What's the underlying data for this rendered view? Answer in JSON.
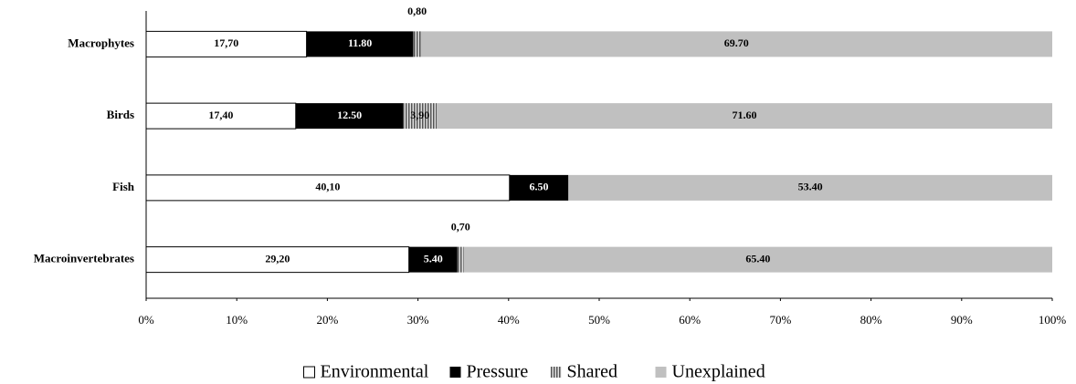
{
  "chart_data": {
    "type": "bar",
    "orientation": "horizontal",
    "stacked": "percent",
    "categories": [
      "Macrophytes",
      "Birds",
      "Fish",
      "Macroinvertebrates"
    ],
    "series": [
      {
        "name": "Environmental",
        "color": "#ffffff",
        "values": [
          17.7,
          17.4,
          40.1,
          29.2
        ],
        "value_labels": [
          "17,70",
          "17,40",
          "40,10",
          "29,20"
        ]
      },
      {
        "name": "Pressure",
        "color": "#000000",
        "values": [
          11.8,
          12.5,
          6.5,
          5.4
        ],
        "value_labels": [
          "11.80",
          "12.50",
          "6.50",
          "5.40"
        ]
      },
      {
        "name": "Shared",
        "color": "#999999",
        "pattern": "vertical-stripes",
        "values": [
          0.8,
          3.9,
          null,
          0.7
        ],
        "value_labels": [
          "0,80",
          "3,90",
          null,
          "0,70"
        ]
      },
      {
        "name": "Unexplained",
        "color": "#c0c0c0",
        "values": [
          69.7,
          71.6,
          53.4,
          65.4
        ],
        "value_labels": [
          "69.70",
          "71.60",
          "53.40",
          "65.40"
        ]
      }
    ],
    "xlim": [
      0,
      100
    ],
    "xticks": [
      {
        "value": 0,
        "label": "0%"
      },
      {
        "value": 10,
        "label": "10%"
      },
      {
        "value": 20,
        "label": "20%"
      },
      {
        "value": 30,
        "label": "30%"
      },
      {
        "value": 40,
        "label": "40%"
      },
      {
        "value": 50,
        "label": "50%"
      },
      {
        "value": 60,
        "label": "60%"
      },
      {
        "value": 70,
        "label": "70%"
      },
      {
        "value": 80,
        "label": "80%"
      },
      {
        "value": 90,
        "label": "90%"
      },
      {
        "value": 100,
        "label": "100%"
      }
    ],
    "grid": false,
    "legend": "bottom"
  }
}
